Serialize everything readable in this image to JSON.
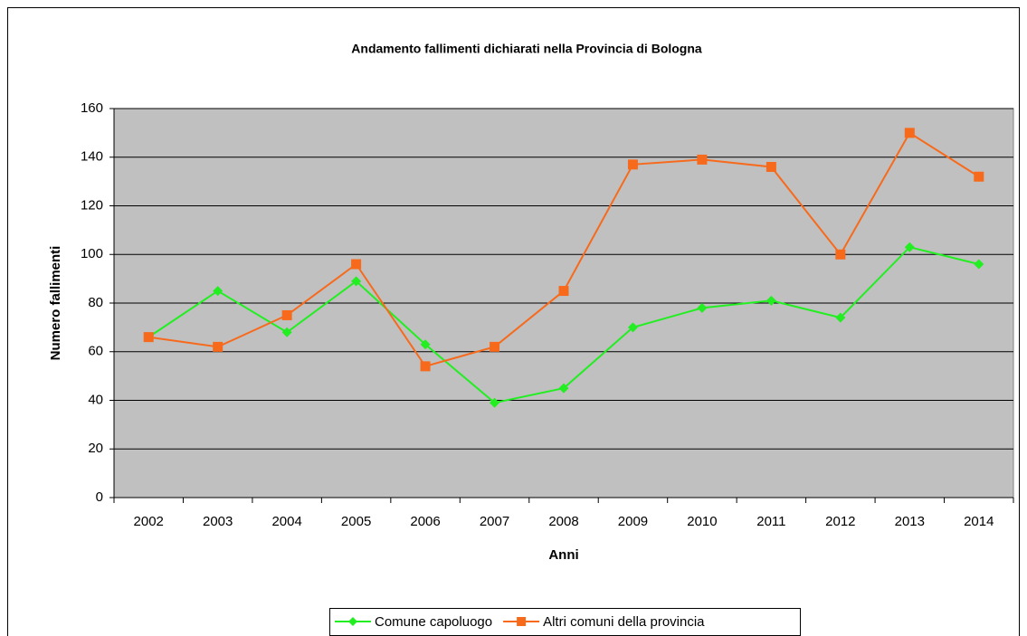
{
  "chart_data": {
    "type": "line",
    "title": "Andamento fallimenti dichiarati nella Provincia di Bologna",
    "x_label": "Anni",
    "y_label": "Numero fallimenti",
    "categories": [
      "2002",
      "2003",
      "2004",
      "2005",
      "2006",
      "2007",
      "2008",
      "2009",
      "2010",
      "2011",
      "2012",
      "2013",
      "2014"
    ],
    "series": [
      {
        "name": "Comune capoluogo",
        "color": "#22ee22",
        "marker": "diamond",
        "values": [
          66,
          85,
          68,
          89,
          63,
          39,
          45,
          70,
          78,
          81,
          74,
          103,
          96
        ]
      },
      {
        "name": "Altri comuni della provincia",
        "color": "#f76a1c",
        "marker": "square",
        "values": [
          66,
          62,
          75,
          96,
          54,
          62,
          85,
          137,
          139,
          136,
          100,
          150,
          132
        ]
      }
    ],
    "ylim": [
      0,
      160
    ],
    "yticks": [
      0,
      20,
      40,
      60,
      80,
      100,
      120,
      140,
      160
    ],
    "grid": true,
    "legend": "bottom"
  }
}
